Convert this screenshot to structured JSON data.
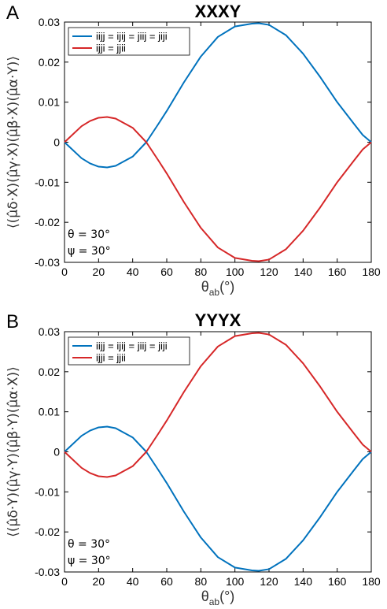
{
  "chart_data": [
    {
      "type": "line",
      "panel_label": "A",
      "title": "XXXY",
      "ylabel": "⟨(μ̂δ·X)(μ̂γ·X)(μ̂β·X)(μ̂α·Y)⟩",
      "xlabel": "θab(°)",
      "xlim": [
        0,
        180
      ],
      "ylim": [
        -0.03,
        0.03
      ],
      "xticks": [
        "0",
        "20",
        "40",
        "60",
        "80",
        "100",
        "120",
        "140",
        "160",
        "180"
      ],
      "yticks": [
        "0.03",
        "0.02",
        "0.01",
        "0",
        "-0.01",
        "-0.02",
        "-0.03"
      ],
      "legend_position": "top-left",
      "annotations": [
        "θ = 30°",
        "ψ = 30°"
      ],
      "series": [
        {
          "name": "iijj = ijij = jiij = jiji",
          "color": "#0072BD",
          "x": [
            0,
            10,
            15,
            20,
            25,
            30,
            40,
            48,
            55,
            60,
            70,
            80,
            90,
            100,
            110,
            114,
            120,
            130,
            140,
            150,
            160,
            170,
            175,
            180
          ],
          "y": [
            0,
            -0.004,
            -0.0053,
            -0.0061,
            -0.0063,
            -0.0059,
            -0.0036,
            0,
            0.0045,
            0.0078,
            0.0149,
            0.0214,
            0.0263,
            0.0289,
            0.0296,
            0.0297,
            0.0293,
            0.0267,
            0.0221,
            0.0163,
            0.01,
            0.0045,
            0.0018,
            0
          ]
        },
        {
          "name": "ijji = jjii",
          "color": "#D62728",
          "x": [
            0,
            10,
            15,
            20,
            25,
            30,
            40,
            48,
            55,
            60,
            70,
            80,
            90,
            100,
            110,
            114,
            120,
            130,
            140,
            150,
            160,
            170,
            175,
            180
          ],
          "y": [
            0,
            0.004,
            0.0053,
            0.0061,
            0.0063,
            0.0059,
            0.0036,
            0,
            -0.0045,
            -0.0078,
            -0.0149,
            -0.0214,
            -0.0263,
            -0.0289,
            -0.0296,
            -0.0297,
            -0.0293,
            -0.0267,
            -0.0221,
            -0.0163,
            -0.01,
            -0.0045,
            -0.0018,
            0
          ]
        }
      ]
    },
    {
      "type": "line",
      "panel_label": "B",
      "title": "YYYX",
      "ylabel": "⟨(μ̂δ·Y)(μ̂γ·Y)(μ̂β·Y)(μ̂α·X)⟩",
      "xlabel": "θab(°)",
      "xlim": [
        0,
        180
      ],
      "ylim": [
        -0.03,
        0.03
      ],
      "xticks": [
        "0",
        "20",
        "40",
        "60",
        "80",
        "100",
        "120",
        "140",
        "160",
        "180"
      ],
      "yticks": [
        "0.03",
        "0.02",
        "0.01",
        "0",
        "-0.01",
        "-0.02",
        "-0.03"
      ],
      "legend_position": "top-left",
      "annotations": [
        "θ = 30°",
        "ψ = 30°"
      ],
      "series": [
        {
          "name": "iijj = ijij = jiij = jiji",
          "color": "#0072BD",
          "x": [
            0,
            10,
            15,
            20,
            25,
            30,
            40,
            48,
            55,
            60,
            70,
            80,
            90,
            100,
            110,
            114,
            120,
            130,
            140,
            150,
            160,
            170,
            175,
            180
          ],
          "y": [
            0,
            0.004,
            0.0053,
            0.0061,
            0.0063,
            0.0059,
            0.0036,
            0,
            -0.0045,
            -0.0078,
            -0.0149,
            -0.0214,
            -0.0263,
            -0.0289,
            -0.0296,
            -0.0297,
            -0.0293,
            -0.0267,
            -0.0221,
            -0.0163,
            -0.01,
            -0.0045,
            -0.0018,
            0
          ]
        },
        {
          "name": "ijji = jjii",
          "color": "#D62728",
          "x": [
            0,
            10,
            15,
            20,
            25,
            30,
            40,
            48,
            55,
            60,
            70,
            80,
            90,
            100,
            110,
            114,
            120,
            130,
            140,
            150,
            160,
            170,
            175,
            180
          ],
          "y": [
            0,
            -0.004,
            -0.0053,
            -0.0061,
            -0.0063,
            -0.0059,
            -0.0036,
            0,
            0.0045,
            0.0078,
            0.0149,
            0.0214,
            0.0263,
            0.0289,
            0.0296,
            0.0297,
            0.0293,
            0.0267,
            0.0221,
            0.0163,
            0.01,
            0.0045,
            0.0018,
            0
          ]
        }
      ]
    }
  ]
}
